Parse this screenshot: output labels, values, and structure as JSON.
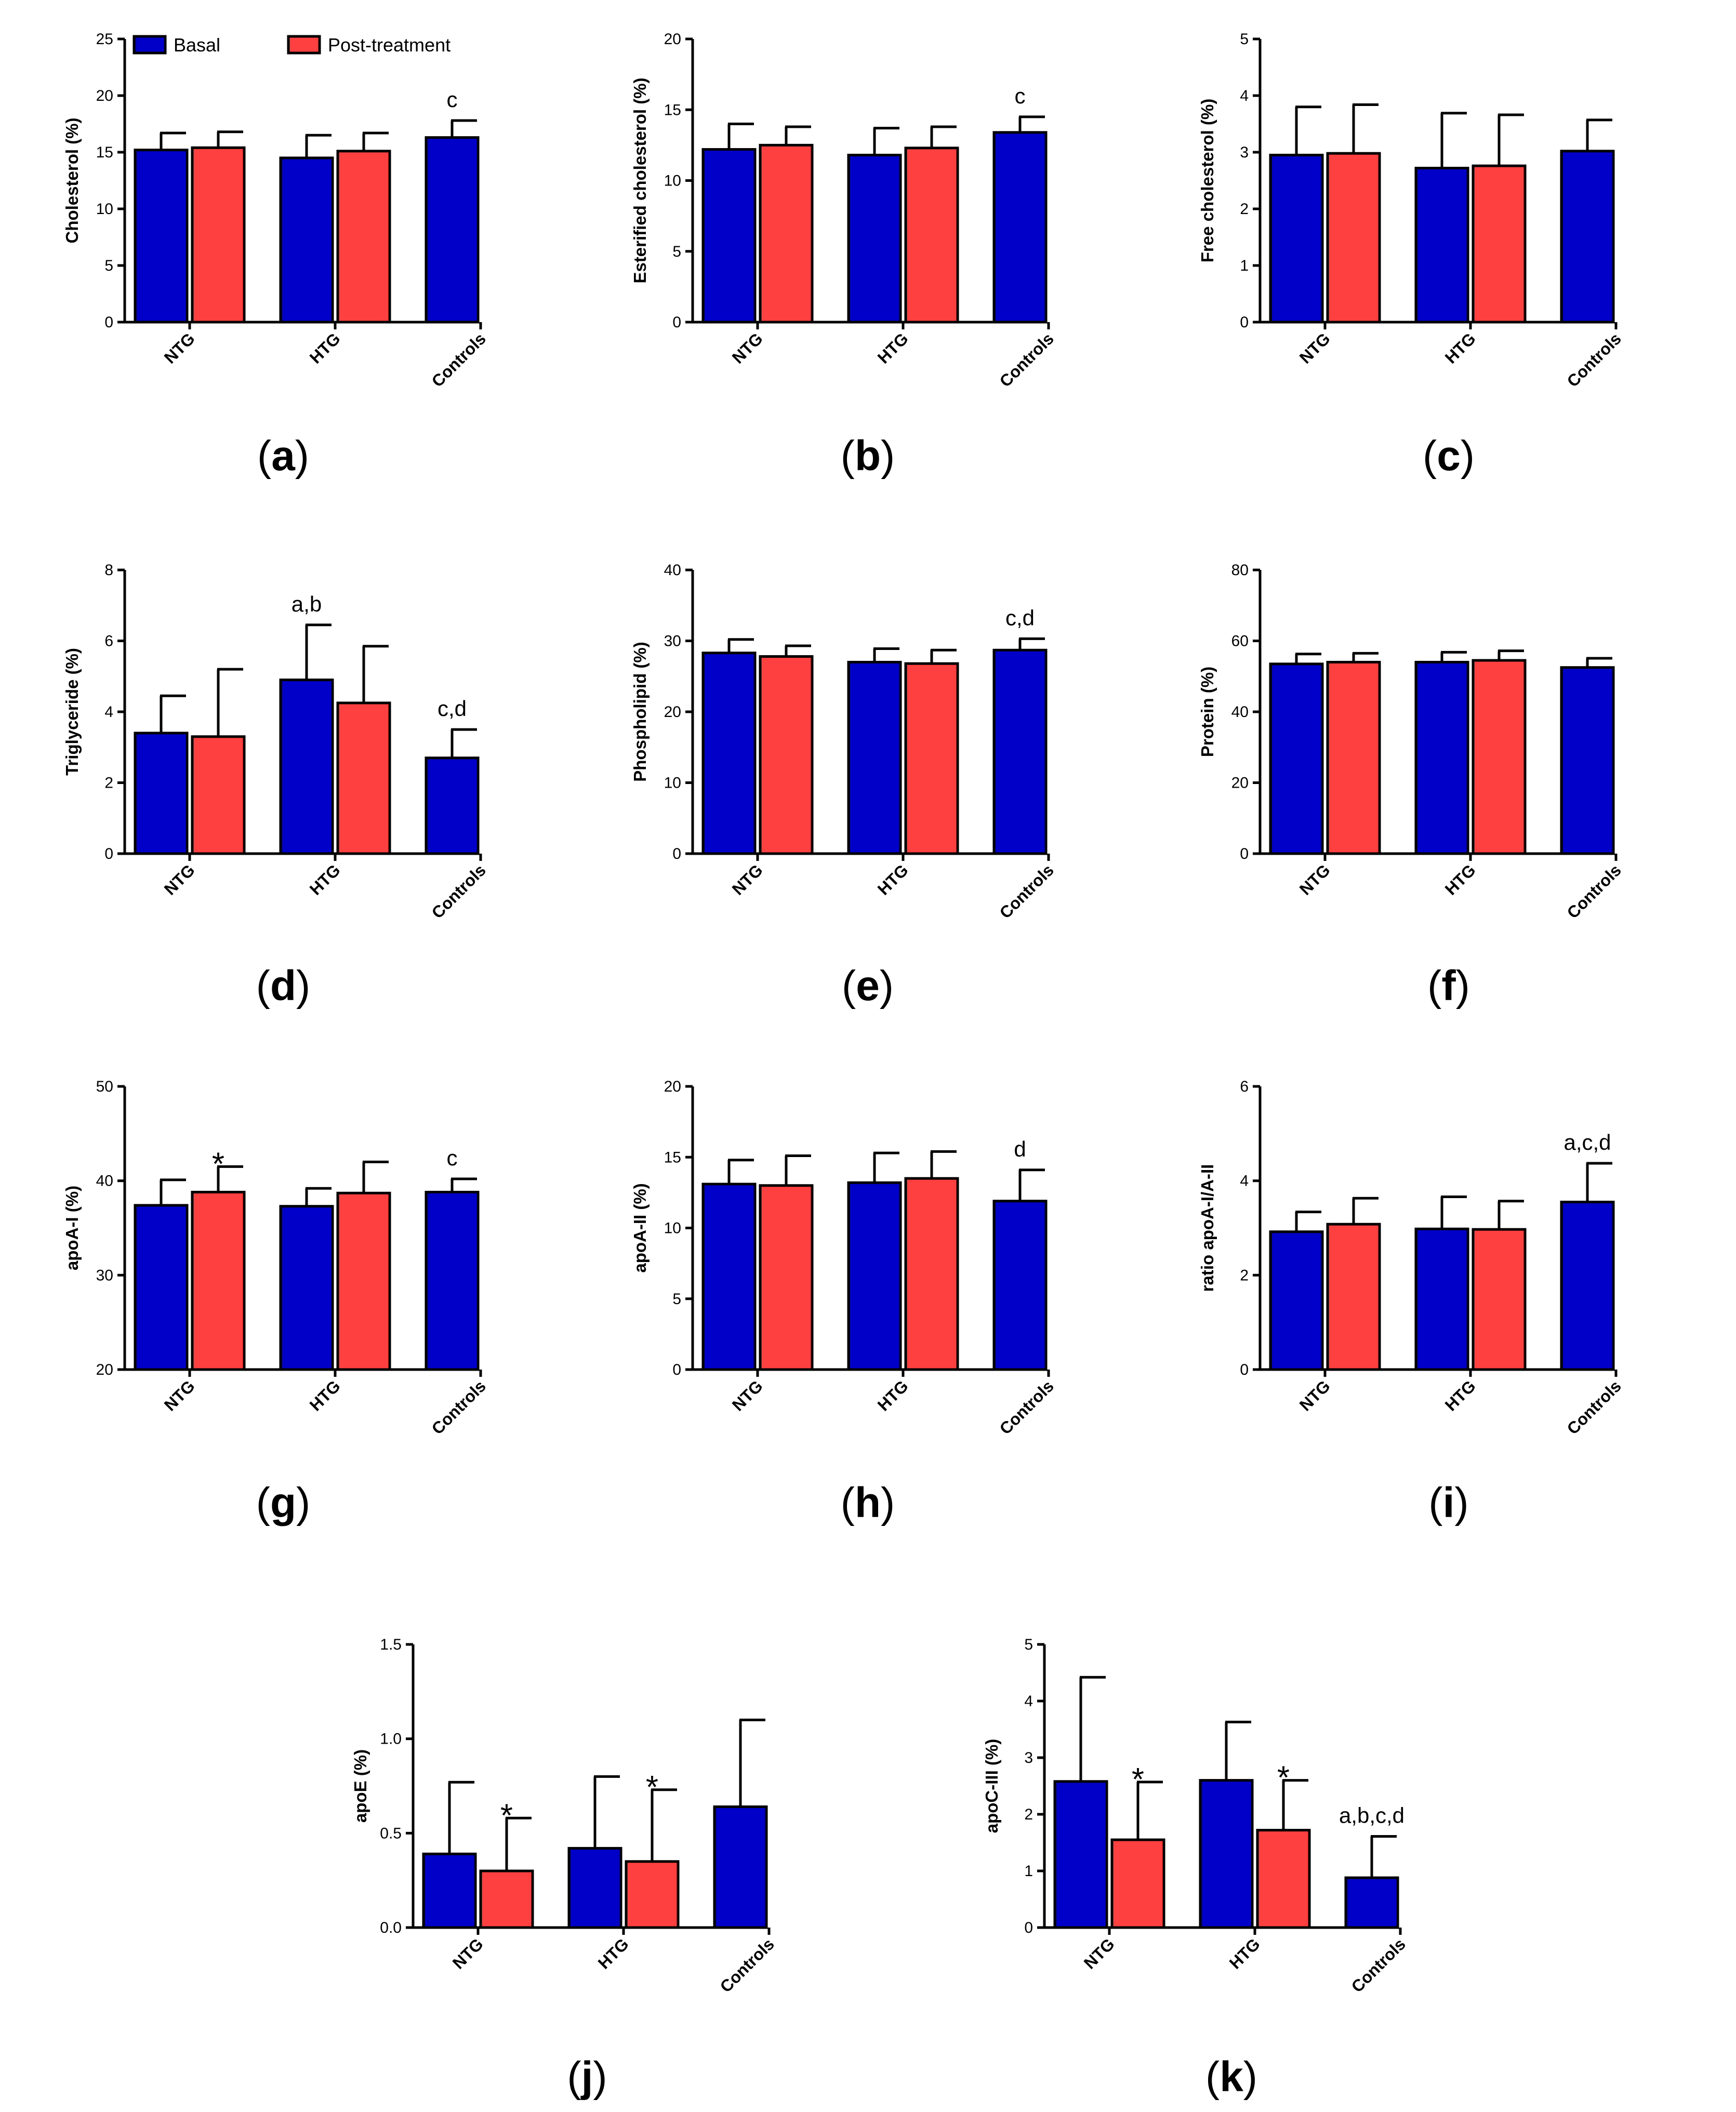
{
  "legend": {
    "series": [
      {
        "name": "Basal",
        "color": "#0000c8"
      },
      {
        "name": "Post-treatment",
        "color": "#ff4040"
      }
    ]
  },
  "chart_data": [
    {
      "panel": "a",
      "type": "bar",
      "ylabel": "Cholesterol (%)",
      "categories": [
        "NTG",
        "HTG",
        "Controls"
      ],
      "ylim": [
        0,
        25
      ],
      "yticks": [
        "0",
        "5",
        "10",
        "15",
        "20",
        "25"
      ],
      "series": [
        {
          "name": "Basal",
          "values": [
            15.2,
            14.5,
            16.3
          ],
          "errors": [
            1.5,
            2.0,
            1.5
          ]
        },
        {
          "name": "Post-treatment",
          "values": [
            15.4,
            15.1,
            null
          ],
          "errors": [
            1.4,
            1.6,
            null
          ]
        }
      ],
      "annotations": [
        {
          "category": "Controls",
          "series": "Basal",
          "text": "c"
        }
      ]
    },
    {
      "panel": "b",
      "type": "bar",
      "ylabel": "Esterified cholesterol (%)",
      "categories": [
        "NTG",
        "HTG",
        "Controls"
      ],
      "ylim": [
        0,
        20
      ],
      "yticks": [
        "0",
        "5",
        "10",
        "15",
        "20"
      ],
      "series": [
        {
          "name": "Basal",
          "values": [
            12.2,
            11.8,
            13.4
          ],
          "errors": [
            1.8,
            1.9,
            1.1
          ]
        },
        {
          "name": "Post-treatment",
          "values": [
            12.5,
            12.3,
            null
          ],
          "errors": [
            1.3,
            1.5,
            null
          ]
        }
      ],
      "annotations": [
        {
          "category": "Controls",
          "series": "Basal",
          "text": "c"
        }
      ]
    },
    {
      "panel": "c",
      "type": "bar",
      "ylabel": "Free cholesterol (%)",
      "categories": [
        "NTG",
        "HTG",
        "Controls"
      ],
      "ylim": [
        0,
        5
      ],
      "yticks": [
        "0",
        "1",
        "2",
        "3",
        "4",
        "5"
      ],
      "series": [
        {
          "name": "Basal",
          "values": [
            2.95,
            2.72,
            3.02
          ],
          "errors": [
            0.85,
            0.97,
            0.55
          ]
        },
        {
          "name": "Post-treatment",
          "values": [
            2.98,
            2.76,
            null
          ],
          "errors": [
            0.86,
            0.9,
            null
          ]
        }
      ],
      "annotations": []
    },
    {
      "panel": "d",
      "type": "bar",
      "ylabel": "Triglyceride (%)",
      "categories": [
        "NTG",
        "HTG",
        "Controls"
      ],
      "ylim": [
        0,
        8
      ],
      "yticks": [
        "0",
        "2",
        "4",
        "6",
        "8"
      ],
      "series": [
        {
          "name": "Basal",
          "values": [
            3.4,
            4.9,
            2.7
          ],
          "errors": [
            1.05,
            1.55,
            0.8
          ]
        },
        {
          "name": "Post-treatment",
          "values": [
            3.3,
            4.25,
            null
          ],
          "errors": [
            1.9,
            1.6,
            null
          ]
        }
      ],
      "annotations": [
        {
          "category": "HTG",
          "series": "Basal",
          "text": "a,b"
        },
        {
          "category": "Controls",
          "series": "Basal",
          "text": "c,d"
        }
      ]
    },
    {
      "panel": "e",
      "type": "bar",
      "ylabel": "Phospholipid (%)",
      "categories": [
        "NTG",
        "HTG",
        "Controls"
      ],
      "ylim": [
        0,
        40
      ],
      "yticks": [
        "0",
        "10",
        "20",
        "30",
        "40"
      ],
      "series": [
        {
          "name": "Basal",
          "values": [
            28.3,
            27.0,
            28.7
          ],
          "errors": [
            1.9,
            1.9,
            1.6
          ]
        },
        {
          "name": "Post-treatment",
          "values": [
            27.8,
            26.8,
            null
          ],
          "errors": [
            1.5,
            1.9,
            null
          ]
        }
      ],
      "annotations": [
        {
          "category": "Controls",
          "series": "Basal",
          "text": "c,d"
        }
      ]
    },
    {
      "panel": "f",
      "type": "bar",
      "ylabel": "Protein (%)",
      "categories": [
        "NTG",
        "HTG",
        "Controls"
      ],
      "ylim": [
        0,
        80
      ],
      "yticks": [
        "0",
        "20",
        "40",
        "60",
        "80"
      ],
      "series": [
        {
          "name": "Basal",
          "values": [
            53.5,
            54.0,
            52.5
          ],
          "errors": [
            2.8,
            2.8,
            2.6
          ]
        },
        {
          "name": "Post-treatment",
          "values": [
            54.0,
            54.5,
            null
          ],
          "errors": [
            2.5,
            2.7,
            null
          ]
        }
      ],
      "annotations": []
    },
    {
      "panel": "g",
      "type": "bar",
      "ylabel": "apoA-I (%)",
      "categories": [
        "NTG",
        "HTG",
        "Controls"
      ],
      "ylim": [
        20,
        50
      ],
      "yticks": [
        "20",
        "30",
        "40",
        "50"
      ],
      "series": [
        {
          "name": "Basal",
          "values": [
            37.4,
            37.3,
            38.8
          ],
          "errors": [
            2.7,
            1.9,
            1.4
          ]
        },
        {
          "name": "Post-treatment",
          "values": [
            38.8,
            38.7,
            null
          ],
          "errors": [
            2.7,
            3.3,
            null
          ]
        }
      ],
      "annotations": [
        {
          "category": "NTG",
          "series": "Post-treatment",
          "text": "*"
        },
        {
          "category": "Controls",
          "series": "Basal",
          "text": "c"
        }
      ]
    },
    {
      "panel": "h",
      "type": "bar",
      "ylabel": "apoA-II (%)",
      "categories": [
        "NTG",
        "HTG",
        "Controls"
      ],
      "ylim": [
        0,
        20
      ],
      "yticks": [
        "0",
        "5",
        "10",
        "15",
        "20"
      ],
      "series": [
        {
          "name": "Basal",
          "values": [
            13.1,
            13.2,
            11.9
          ],
          "errors": [
            1.7,
            2.1,
            2.2
          ]
        },
        {
          "name": "Post-treatment",
          "values": [
            13.0,
            13.5,
            null
          ],
          "errors": [
            2.1,
            1.9,
            null
          ]
        }
      ],
      "annotations": [
        {
          "category": "Controls",
          "series": "Basal",
          "text": "d"
        }
      ]
    },
    {
      "panel": "i",
      "type": "bar",
      "ylabel": "ratio apoA-I/A-II",
      "categories": [
        "NTG",
        "HTG",
        "Controls"
      ],
      "ylim": [
        0,
        6
      ],
      "yticks": [
        "0",
        "2",
        "4",
        "6"
      ],
      "series": [
        {
          "name": "Basal",
          "values": [
            2.92,
            2.98,
            3.55
          ],
          "errors": [
            0.42,
            0.68,
            0.82
          ]
        },
        {
          "name": "Post-treatment",
          "values": [
            3.08,
            2.97,
            null
          ],
          "errors": [
            0.55,
            0.6,
            null
          ]
        }
      ],
      "annotations": [
        {
          "category": "Controls",
          "series": "Basal",
          "text": "a,c,d"
        }
      ]
    },
    {
      "panel": "j",
      "type": "bar",
      "ylabel": "apoE (%)",
      "categories": [
        "NTG",
        "HTG",
        "Controls"
      ],
      "ylim": [
        0,
        1.5
      ],
      "yticks": [
        "0.0",
        "0.5",
        "1.0",
        "1.5"
      ],
      "series": [
        {
          "name": "Basal",
          "values": [
            0.39,
            0.42,
            0.64
          ],
          "errors": [
            0.38,
            0.38,
            0.46
          ]
        },
        {
          "name": "Post-treatment",
          "values": [
            0.3,
            0.35,
            null
          ],
          "errors": [
            0.28,
            0.38,
            null
          ]
        }
      ],
      "annotations": [
        {
          "category": "NTG",
          "series": "Post-treatment",
          "text": "*"
        },
        {
          "category": "HTG",
          "series": "Post-treatment",
          "text": "*"
        }
      ]
    },
    {
      "panel": "k",
      "type": "bar",
      "ylabel": "apoC-III (%)",
      "categories": [
        "NTG",
        "HTG",
        "Controls"
      ],
      "ylim": [
        0,
        5
      ],
      "yticks": [
        "0",
        "1",
        "2",
        "3",
        "4",
        "5"
      ],
      "series": [
        {
          "name": "Basal",
          "values": [
            2.58,
            2.6,
            0.88
          ],
          "errors": [
            1.84,
            1.03,
            0.73
          ]
        },
        {
          "name": "Post-treatment",
          "values": [
            1.55,
            1.72,
            null
          ],
          "errors": [
            1.02,
            0.88,
            null
          ]
        }
      ],
      "annotations": [
        {
          "category": "NTG",
          "series": "Post-treatment",
          "text": "*"
        },
        {
          "category": "HTG",
          "series": "Post-treatment",
          "text": "*"
        },
        {
          "category": "Controls",
          "series": "Basal",
          "text": "a,b,c,d"
        }
      ]
    }
  ]
}
